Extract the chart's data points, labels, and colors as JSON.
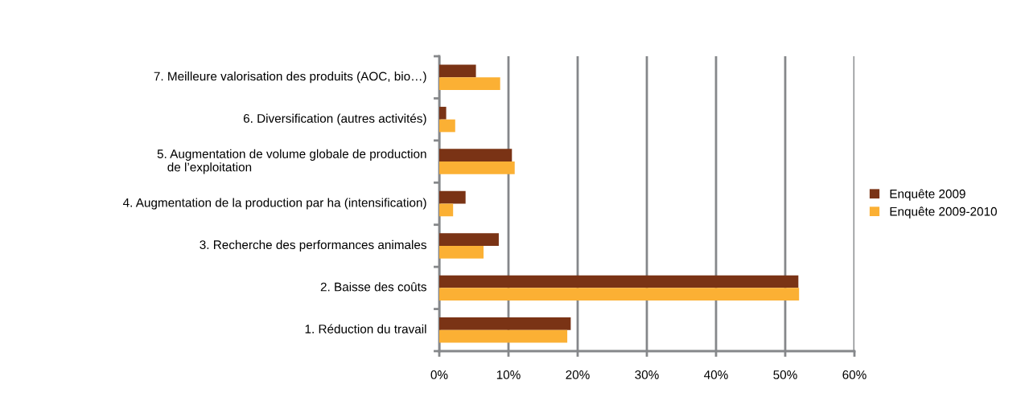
{
  "chart_data": {
    "type": "bar",
    "orientation": "horizontal",
    "categories": [
      "7. Meilleure valorisation des produits (AOC, bio…)",
      "6. Diversification (autres activités)",
      "5. Augmentation de volume globale de production\n   de l’exploitation",
      "4. Augmentation de la production par ha (intensification)",
      "3. Recherche des performances animales",
      "2. Baisse des coûts",
      "1. Réduction du travail"
    ],
    "series": [
      {
        "name": "Enquête 2009",
        "color": "#7a3315",
        "values": [
          5.3,
          1.0,
          10.5,
          3.8,
          8.6,
          51.9,
          19.0
        ]
      },
      {
        "name": "Enquête 2009-2010",
        "color": "#fbb034",
        "values": [
          8.8,
          2.3,
          10.9,
          2.0,
          6.4,
          52.0,
          18.5
        ]
      }
    ],
    "xlim": [
      0,
      60
    ],
    "xticks": [
      {
        "value": 0,
        "label": "0%"
      },
      {
        "value": 10,
        "label": "10%"
      },
      {
        "value": 20,
        "label": "20%"
      },
      {
        "value": 30,
        "label": "30%"
      },
      {
        "value": 40,
        "label": "40%"
      },
      {
        "value": 50,
        "label": "50%"
      },
      {
        "value": 60,
        "label": "60%"
      }
    ],
    "grid": "x",
    "legend": "right"
  }
}
